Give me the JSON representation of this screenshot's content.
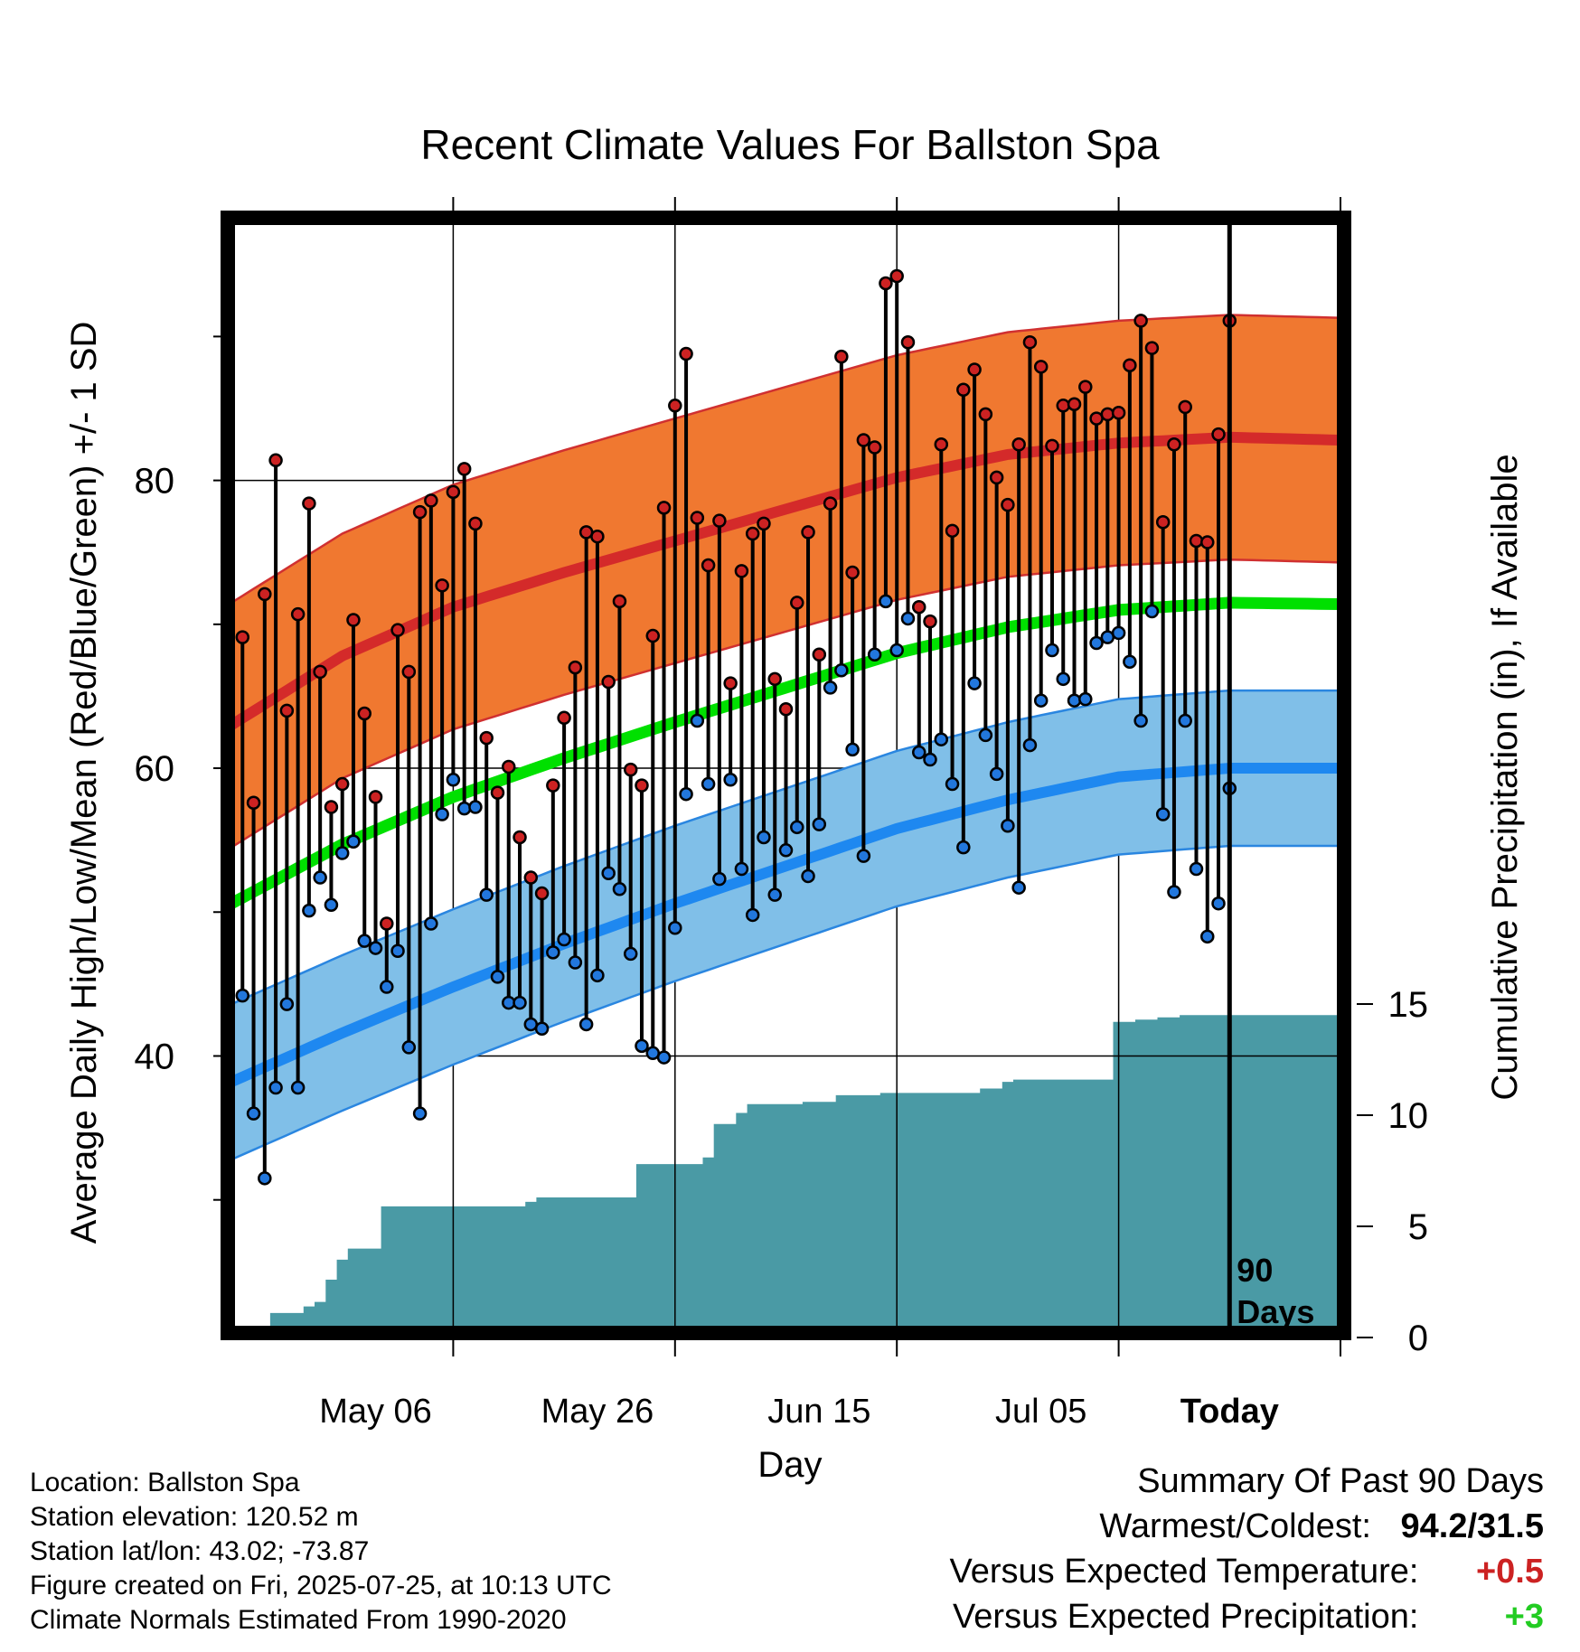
{
  "chart_data": {
    "type": "line",
    "title": "Recent Climate Values For Ballston Spa",
    "xlabel": "Day",
    "ylabel": "Average Daily High/Low/Mean (Red/Blue/Green) +/- 1 SD",
    "y2label": "Cumulative Precipitation (in), If Available",
    "x_tick_labels": [
      "May 06",
      "May 26",
      "Jun 15",
      "Jul 05",
      "Today"
    ],
    "y_ticks": [
      "40",
      "60",
      "80"
    ],
    "y2_ticks": [
      "0",
      "5",
      "10",
      "15"
    ],
    "ylim": [
      21,
      98
    ],
    "y2lim": [
      0,
      20
    ],
    "xlim_days": [
      -90,
      10
    ],
    "grid": true,
    "period_label": "90 Days",
    "normal_high": [
      63.0,
      67.8,
      71.2,
      73.6,
      75.8,
      78.0,
      80.2,
      81.8,
      82.6,
      83.0,
      82.8,
      82.2
    ],
    "normal_high_sd": 8.5,
    "normal_low": [
      38.2,
      41.6,
      44.8,
      47.8,
      50.6,
      53.2,
      55.8,
      57.8,
      59.4,
      60.0,
      60.0,
      59.4
    ],
    "normal_low_sd": 5.4,
    "normal_mean": [
      50.6,
      54.7,
      58.0,
      60.7,
      63.2,
      65.6,
      68.0,
      69.8,
      71.0,
      71.5,
      71.4,
      70.8
    ],
    "series": [
      {
        "name": "High",
        "color": "#cc2222",
        "values": [
          69.1,
          57.6,
          72.1,
          81.4,
          64.0,
          70.7,
          78.4,
          66.7,
          57.3,
          58.9,
          70.3,
          63.8,
          58.0,
          49.2,
          69.6,
          66.7,
          77.8,
          78.6,
          72.7,
          79.2,
          80.8,
          77.0,
          62.1,
          58.3,
          60.1,
          55.2,
          52.4,
          51.3,
          58.8,
          63.5,
          67.0,
          76.4,
          76.1,
          66.0,
          71.6,
          59.9,
          58.8,
          69.2,
          78.1,
          85.2,
          88.8,
          77.4,
          74.1,
          77.2,
          65.9,
          73.7,
          76.3,
          77.0,
          66.2,
          64.1,
          71.5,
          76.4,
          67.9,
          78.4,
          88.6,
          73.6,
          82.8,
          82.3,
          93.7,
          94.2,
          89.6,
          71.2,
          70.2,
          82.5,
          76.5,
          86.3,
          87.7,
          84.6,
          80.2,
          78.3,
          82.5,
          89.6,
          87.9,
          82.4,
          85.2,
          85.3,
          86.5,
          84.3,
          84.6,
          84.7,
          88.0,
          91.1,
          89.2,
          77.1,
          82.5,
          85.1,
          75.8,
          75.7,
          83.2,
          91.1
        ]
      },
      {
        "name": "Low",
        "color": "#2277dd",
        "values": [
          44.2,
          36.0,
          31.5,
          37.8,
          43.6,
          37.8,
          50.1,
          52.4,
          50.5,
          54.1,
          54.9,
          48.0,
          47.5,
          44.8,
          47.3,
          40.6,
          36.0,
          49.2,
          56.8,
          59.2,
          57.2,
          57.3,
          51.2,
          45.5,
          43.7,
          43.7,
          42.2,
          41.9,
          47.2,
          48.1,
          46.5,
          42.2,
          45.6,
          52.7,
          51.6,
          47.1,
          40.7,
          40.2,
          39.9,
          48.9,
          58.2,
          63.3,
          58.9,
          52.3,
          59.2,
          53.0,
          49.8,
          55.2,
          51.2,
          54.3,
          55.9,
          52.5,
          56.1,
          65.6,
          66.8,
          61.3,
          53.9,
          67.9,
          71.6,
          68.2,
          70.4,
          61.1,
          60.6,
          62.0,
          58.9,
          54.5,
          65.9,
          62.3,
          59.6,
          56.0,
          51.7,
          61.6,
          64.7,
          68.2,
          66.2,
          64.7,
          64.8,
          68.7,
          69.1,
          69.4,
          67.4,
          63.3,
          70.9,
          56.8,
          51.4,
          63.3,
          53.0,
          48.3,
          50.6,
          58.6
        ]
      },
      {
        "name": "Cumulative Precipitation",
        "color": "#4a9aa5",
        "values": [
          0.5,
          0.5,
          0.5,
          1.1,
          1.1,
          1.1,
          1.4,
          1.6,
          2.6,
          3.5,
          4.0,
          4.0,
          4.0,
          5.9,
          5.9,
          5.9,
          5.9,
          5.9,
          5.9,
          5.9,
          5.9,
          5.9,
          5.9,
          5.9,
          5.9,
          5.9,
          6.1,
          6.3,
          6.3,
          6.3,
          6.3,
          6.3,
          6.3,
          6.3,
          6.3,
          6.3,
          7.8,
          7.8,
          7.8,
          7.8,
          7.8,
          7.8,
          8.1,
          9.6,
          9.6,
          10.1,
          10.5,
          10.5,
          10.5,
          10.5,
          10.5,
          10.6,
          10.6,
          10.6,
          10.9,
          10.9,
          10.9,
          10.9,
          11.0,
          11.0,
          11.0,
          11.0,
          11.0,
          11.0,
          11.0,
          11.0,
          11.0,
          11.2,
          11.2,
          11.5,
          11.6,
          11.6,
          11.6,
          11.6,
          11.6,
          11.6,
          11.6,
          11.6,
          11.6,
          14.2,
          14.2,
          14.3,
          14.3,
          14.4,
          14.4,
          14.5,
          14.5,
          14.5,
          14.5,
          14.5,
          14.5
        ]
      }
    ]
  },
  "footer": {
    "location": "Location: Ballston Spa",
    "elevation": "Station elevation: 120.52 m",
    "latlon": "Station lat/lon: 43.02; -73.87",
    "created": "Figure created on Fri, 2025-07-25, at 10:13 UTC",
    "normals": "Climate Normals Estimated From 1990-2020"
  },
  "summary": {
    "heading": "Summary Of Past 90 Days",
    "warmest_label": "Warmest/Coldest:",
    "warmest_value": "94.2/31.5",
    "temp_label": "Versus Expected Temperature:",
    "temp_value": "+0.5",
    "temp_color": "#cc2222",
    "precip_label": "Versus Expected Precipitation:",
    "precip_value": "+3",
    "precip_color": "#22cc22"
  }
}
